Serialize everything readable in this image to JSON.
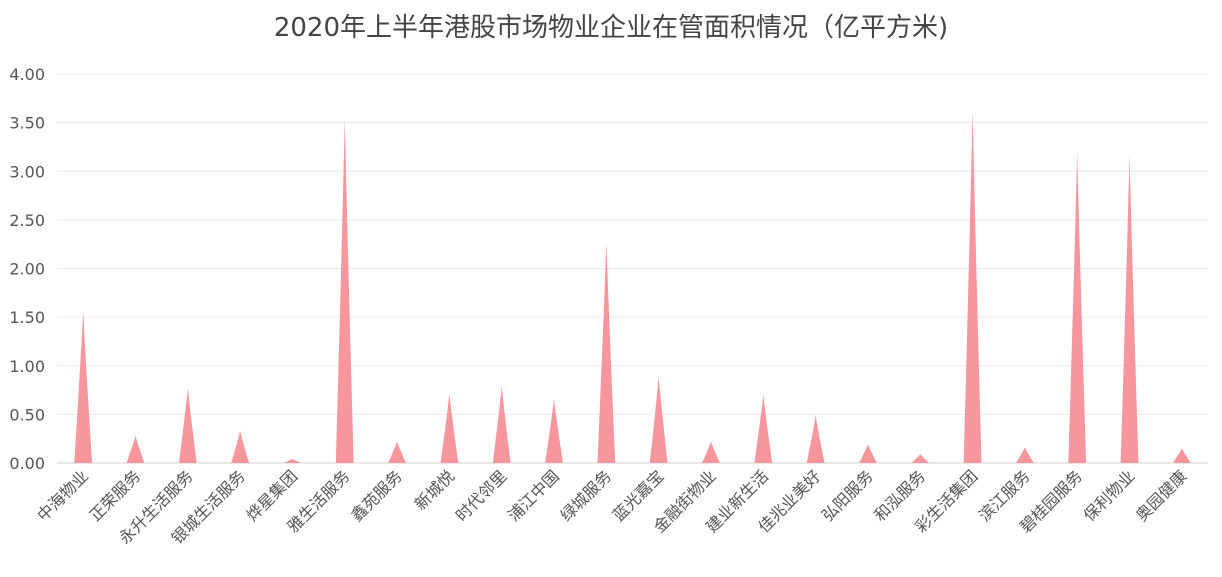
{
  "chart_data": {
    "type": "pictorial-bar",
    "title": "2020年上半年港股市场物业企业在管面积情况（亿平方米)",
    "categories": [
      "中海物业",
      "正荣服务",
      "永升生活服务",
      "银城生活服务",
      "烨星集团",
      "雅生活服务",
      "鑫苑服务",
      "新城悦",
      "时代邻里",
      "浦江中国",
      "绿城服务",
      "蓝光嘉宝",
      "金融街物业",
      "建业新生活",
      "佳兆业美好",
      "弘阳服务",
      "和泓服务",
      "彩生活集团",
      "滨江服务",
      "碧桂园服务",
      "保利物业",
      "奥园健康"
    ],
    "values": [
      1.56,
      0.28,
      0.77,
      0.33,
      0.04,
      3.55,
      0.22,
      0.71,
      0.79,
      0.66,
      2.27,
      0.89,
      0.22,
      0.7,
      0.49,
      0.19,
      0.09,
      3.64,
      0.16,
      3.2,
      3.18,
      0.15
    ],
    "color": "#f7969c",
    "ylim": [
      0,
      4
    ],
    "yticks": [
      {
        "value": 0,
        "label": "0.00"
      },
      {
        "value": 0.5,
        "label": "0.50"
      },
      {
        "value": 1,
        "label": "1.00"
      },
      {
        "value": 1.5,
        "label": "1.50"
      },
      {
        "value": 2,
        "label": "2.00"
      },
      {
        "value": 2.5,
        "label": "2.50"
      },
      {
        "value": 3,
        "label": "3.00"
      },
      {
        "value": 3.5,
        "label": "3.50"
      },
      {
        "value": 4,
        "label": "4.00"
      }
    ],
    "grid": true
  }
}
